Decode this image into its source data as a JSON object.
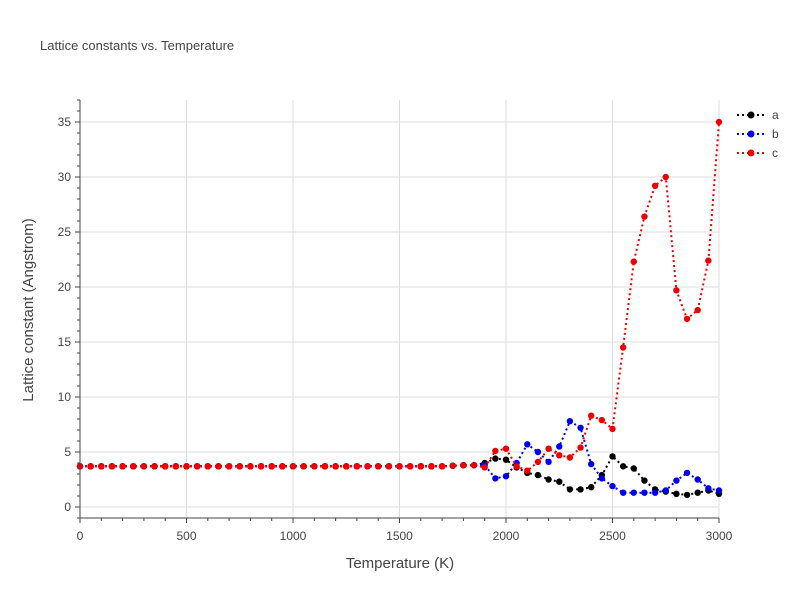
{
  "chart_data": {
    "type": "line",
    "title": "Lattice constants vs. Temperature",
    "xlabel": "Temperature (K)",
    "ylabel": "Lattice constant (Angstrom)",
    "xlim": [
      0,
      3000
    ],
    "ylim": [
      -1,
      37
    ],
    "xticks": [
      0,
      500,
      1000,
      1500,
      2000,
      2500,
      3000
    ],
    "yticks": [
      0,
      5,
      10,
      15,
      20,
      25,
      30,
      35
    ],
    "grid": true,
    "legend_position": "top-right",
    "line_style": "dotted with circle markers",
    "x": [
      0,
      50,
      100,
      150,
      200,
      250,
      300,
      350,
      400,
      450,
      500,
      550,
      600,
      650,
      700,
      750,
      800,
      850,
      900,
      950,
      1000,
      1050,
      1100,
      1150,
      1200,
      1250,
      1300,
      1350,
      1400,
      1450,
      1500,
      1550,
      1600,
      1650,
      1700,
      1750,
      1800,
      1850,
      1900,
      1950,
      2000,
      2050,
      2100,
      2150,
      2200,
      2250,
      2300,
      2350,
      2400,
      2450,
      2500,
      2550,
      2600,
      2650,
      2700,
      2750,
      2800,
      2850,
      2900,
      2950,
      3000
    ],
    "series": [
      {
        "name": "a",
        "color": "#000000",
        "values": [
          3.7,
          3.7,
          3.7,
          3.7,
          3.7,
          3.7,
          3.7,
          3.7,
          3.7,
          3.7,
          3.7,
          3.7,
          3.7,
          3.7,
          3.7,
          3.7,
          3.7,
          3.7,
          3.7,
          3.7,
          3.7,
          3.7,
          3.7,
          3.7,
          3.7,
          3.7,
          3.7,
          3.7,
          3.7,
          3.7,
          3.7,
          3.7,
          3.7,
          3.7,
          3.7,
          3.75,
          3.8,
          3.8,
          4.0,
          4.4,
          4.3,
          3.6,
          3.1,
          2.9,
          2.5,
          2.3,
          1.6,
          1.6,
          1.8,
          2.9,
          4.6,
          3.7,
          3.5,
          2.4,
          1.6,
          1.4,
          1.2,
          1.1,
          1.3,
          1.5,
          1.2
        ]
      },
      {
        "name": "b",
        "color": "#0000ee",
        "values": [
          3.7,
          3.7,
          3.7,
          3.7,
          3.7,
          3.7,
          3.7,
          3.7,
          3.7,
          3.7,
          3.7,
          3.7,
          3.7,
          3.7,
          3.7,
          3.7,
          3.7,
          3.7,
          3.7,
          3.7,
          3.7,
          3.7,
          3.7,
          3.7,
          3.7,
          3.7,
          3.7,
          3.7,
          3.7,
          3.7,
          3.7,
          3.7,
          3.7,
          3.7,
          3.7,
          3.75,
          3.8,
          3.8,
          3.8,
          2.6,
          2.8,
          4.0,
          5.7,
          5.0,
          4.1,
          5.5,
          7.8,
          7.2,
          3.9,
          2.6,
          1.9,
          1.3,
          1.3,
          1.3,
          1.3,
          1.5,
          2.4,
          3.1,
          2.5,
          1.7,
          1.5
        ]
      },
      {
        "name": "c",
        "color": "#ee0000",
        "values": [
          3.7,
          3.7,
          3.7,
          3.7,
          3.7,
          3.7,
          3.7,
          3.7,
          3.7,
          3.7,
          3.7,
          3.7,
          3.7,
          3.7,
          3.7,
          3.7,
          3.7,
          3.7,
          3.7,
          3.7,
          3.7,
          3.7,
          3.7,
          3.7,
          3.7,
          3.7,
          3.7,
          3.7,
          3.7,
          3.7,
          3.7,
          3.7,
          3.7,
          3.7,
          3.7,
          3.75,
          3.8,
          3.8,
          3.6,
          5.1,
          5.3,
          3.7,
          3.3,
          4.1,
          5.3,
          4.7,
          4.5,
          5.4,
          8.3,
          7.9,
          7.1,
          14.5,
          22.3,
          26.4,
          29.2,
          30.0,
          19.7,
          17.1,
          17.9,
          22.4,
          35.0
        ]
      }
    ]
  }
}
